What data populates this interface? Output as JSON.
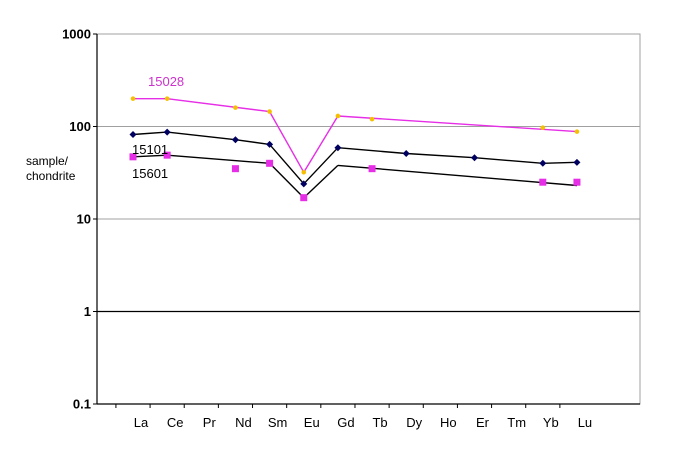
{
  "chart_data": {
    "type": "line",
    "y_scale": "log",
    "ylim": [
      0.1,
      1000
    ],
    "yticks": [
      "0.1",
      "1",
      "10",
      "100",
      "1000"
    ],
    "ylabel_lines": [
      "sample/",
      "chondrite"
    ],
    "categories": [
      "La",
      "Ce",
      "Pr",
      "Nd",
      "Sm",
      "Eu",
      "Gd",
      "Tb",
      "Dy",
      "Ho",
      "Er",
      "Tm",
      "Yb",
      "Lu"
    ],
    "grid": true,
    "series": [
      {
        "name": "15028",
        "line_color": "#e62ee6",
        "marker_color": "#f5c000",
        "marker": "dot",
        "points": [
          [
            "La",
            200
          ],
          [
            "Ce",
            200
          ],
          [
            "Nd",
            160
          ],
          [
            "Sm",
            145
          ],
          [
            "Eu",
            32
          ],
          [
            "Gd",
            130
          ],
          [
            "Tb",
            120
          ],
          [
            "Yb",
            97
          ],
          [
            "Lu",
            88
          ]
        ],
        "segments": [
          [
            "La",
            "Ce",
            "Sm"
          ],
          [
            "Sm",
            "Eu"
          ],
          [
            "Eu",
            "Gd"
          ],
          [
            "Gd",
            "Lu"
          ]
        ]
      },
      {
        "name": "15101",
        "line_color": "#000000",
        "marker_color": "#000060",
        "marker": "diamond",
        "points": [
          [
            "La",
            82
          ],
          [
            "Ce",
            87
          ],
          [
            "Nd",
            72
          ],
          [
            "Sm",
            64
          ],
          [
            "Eu",
            24
          ],
          [
            "Gd",
            59
          ],
          [
            "Dy",
            51
          ],
          [
            "Er",
            46
          ],
          [
            "Yb",
            40
          ],
          [
            "Lu",
            41
          ]
        ],
        "segments": [
          [
            "La",
            "Ce",
            "Nd",
            "Sm"
          ],
          [
            "Sm",
            "Eu"
          ],
          [
            "Eu",
            "Gd"
          ],
          [
            "Gd",
            "Dy",
            "Er",
            "Yb",
            "Lu"
          ]
        ]
      },
      {
        "name": "15601",
        "line_color": "#000000",
        "marker_color": "#e62ee6",
        "marker": "square",
        "points": [
          [
            "La",
            47
          ],
          [
            "Ce",
            49
          ],
          [
            "Nd",
            35
          ],
          [
            "Sm",
            40
          ],
          [
            "Eu",
            17
          ],
          [
            "Tb",
            35
          ],
          [
            "Yb",
            25
          ],
          [
            "Lu",
            25
          ]
        ],
        "segments": [
          [
            "La",
            "Ce",
            "Sm"
          ],
          [
            "Sm",
            "Eu"
          ],
          [
            "Eu",
            "Gd"
          ],
          [
            "Gd",
            "Lu"
          ]
        ],
        "segment_values": {
          "Gd": 38,
          "Lu": 23
        }
      }
    ]
  }
}
